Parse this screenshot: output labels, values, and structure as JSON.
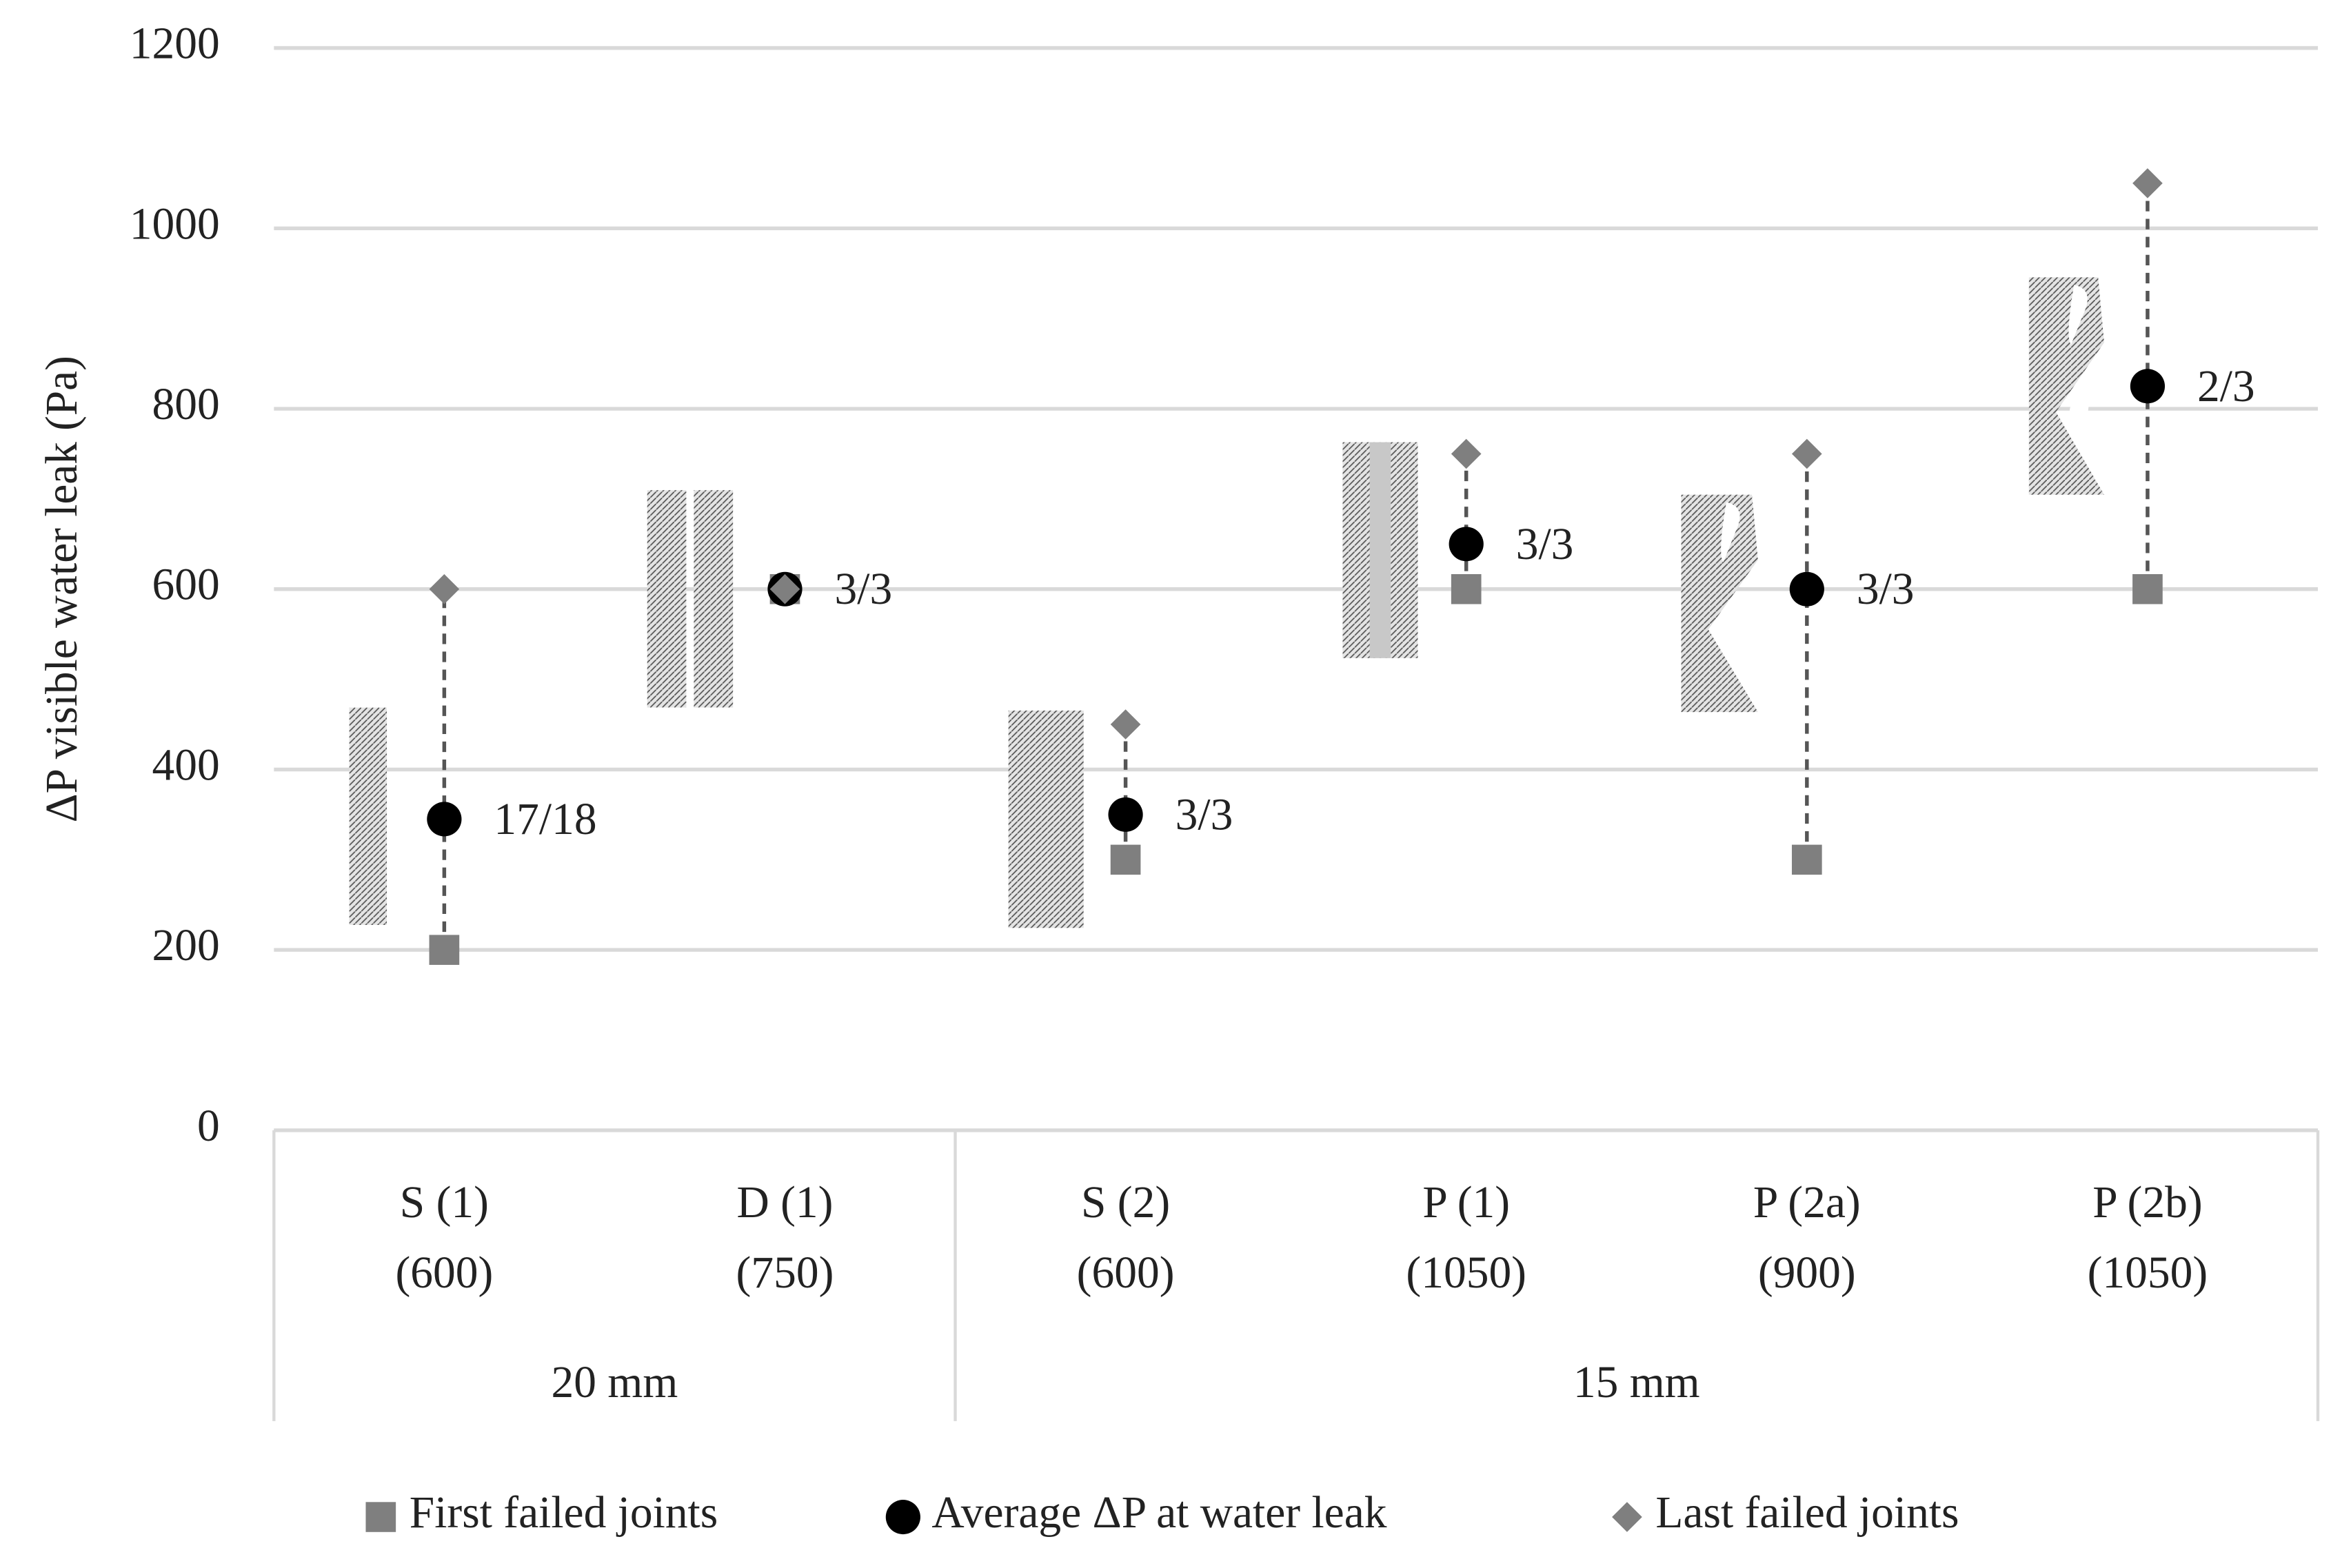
{
  "chart_data": {
    "type": "range-dot",
    "y_label": "ΔP visible water leak (Pa)",
    "groups": [
      {
        "name": "20 mm",
        "categories": [
          [
            "S (1)",
            "(600)"
          ],
          [
            "D (1)",
            "(750)"
          ]
        ]
      },
      {
        "name": "15 mm",
        "categories": [
          [
            "S (2)",
            "(600)"
          ],
          [
            "P (1)",
            "(1050)"
          ],
          [
            "P (2a)",
            "(900)"
          ],
          [
            "P (2b)",
            "(1050)"
          ]
        ]
      }
    ],
    "series": [
      {
        "name": "First failed joints",
        "color": "#7f7f7f",
        "marker": "square",
        "values": [
          200,
          600,
          300,
          600,
          300,
          600
        ]
      },
      {
        "name": "Average ΔP at water leak",
        "color": "#000000",
        "marker": "circle",
        "values": [
          345,
          600,
          350,
          650,
          600,
          825
        ]
      },
      {
        "name": "Last failed joints",
        "color": "#7f7f7f",
        "marker": "diamond",
        "values": [
          600,
          600,
          450,
          750,
          750,
          1050
        ]
      }
    ],
    "annotations": [
      "17/18",
      "3/3",
      "3/3",
      "3/3",
      "3/3",
      "2/3"
    ],
    "ylim": [
      0,
      1200
    ],
    "yticks": [
      0,
      200,
      400,
      600,
      800,
      1000,
      1200
    ],
    "grid": true
  }
}
